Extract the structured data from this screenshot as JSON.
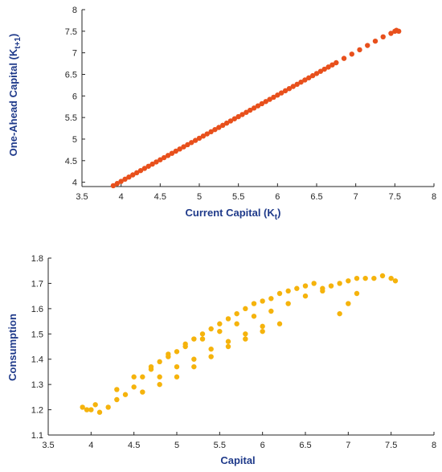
{
  "chart_data": [
    {
      "type": "scatter",
      "xlabel": "Current Capital (K",
      "xlabel_sub": "t",
      "xlabel_end": ")",
      "ylabel": "One-Ahead Capital (K",
      "ylabel_sub": "t+1",
      "ylabel_end": ")",
      "xlim": [
        3.5,
        8
      ],
      "ylim": [
        3.9,
        8
      ],
      "xticks": [
        "3.5",
        "4",
        "4.5",
        "5",
        "5.5",
        "6",
        "6.5",
        "7",
        "7.5",
        "8"
      ],
      "yticks": [
        "4",
        "4.5",
        "5",
        "5.5",
        "6",
        "6.5",
        "7",
        "7.5",
        "8"
      ],
      "grid": false,
      "color": "#e8501c",
      "x": [
        3.9,
        3.95,
        4.0,
        4.05,
        4.1,
        4.15,
        4.2,
        4.25,
        4.3,
        4.35,
        4.4,
        4.45,
        4.5,
        4.55,
        4.6,
        4.65,
        4.7,
        4.75,
        4.8,
        4.85,
        4.9,
        4.95,
        5.0,
        5.05,
        5.1,
        5.15,
        5.2,
        5.25,
        5.3,
        5.35,
        5.4,
        5.45,
        5.5,
        5.55,
        5.6,
        5.65,
        5.7,
        5.75,
        5.8,
        5.85,
        5.9,
        5.95,
        6.0,
        6.05,
        6.1,
        6.15,
        6.2,
        6.25,
        6.3,
        6.35,
        6.4,
        6.45,
        6.5,
        6.55,
        6.6,
        6.65,
        6.7,
        6.75,
        6.85,
        6.95,
        7.05,
        7.15,
        7.25,
        7.35,
        7.45,
        7.5,
        7.52,
        7.55
      ],
      "y": [
        3.92,
        3.97,
        4.02,
        4.07,
        4.12,
        4.17,
        4.22,
        4.27,
        4.32,
        4.37,
        4.42,
        4.47,
        4.52,
        4.57,
        4.62,
        4.67,
        4.72,
        4.77,
        4.82,
        4.87,
        4.92,
        4.97,
        5.02,
        5.07,
        5.12,
        5.17,
        5.22,
        5.27,
        5.32,
        5.37,
        5.42,
        5.47,
        5.52,
        5.57,
        5.62,
        5.67,
        5.72,
        5.77,
        5.82,
        5.87,
        5.92,
        5.97,
        6.02,
        6.07,
        6.12,
        6.17,
        6.22,
        6.27,
        6.32,
        6.37,
        6.42,
        6.47,
        6.52,
        6.57,
        6.62,
        6.67,
        6.72,
        6.77,
        6.87,
        6.97,
        7.07,
        7.17,
        7.27,
        7.37,
        7.45,
        7.5,
        7.52,
        7.5
      ]
    },
    {
      "type": "scatter",
      "xlabel": "Capital",
      "ylabel": "Consumption",
      "xlim": [
        3.5,
        8
      ],
      "ylim": [
        1.1,
        1.8
      ],
      "xticks": [
        "3.5",
        "4",
        "4.5",
        "5",
        "5.5",
        "6",
        "6.5",
        "7",
        "7.5",
        "8"
      ],
      "yticks": [
        "1.1",
        "1.2",
        "1.3",
        "1.4",
        "1.5",
        "1.6",
        "1.7",
        "1.8"
      ],
      "grid": false,
      "color": "#f5b30c",
      "x": [
        3.9,
        3.95,
        4.0,
        4.05,
        4.1,
        4.2,
        4.3,
        4.4,
        4.5,
        4.6,
        4.7,
        4.8,
        4.9,
        5.0,
        5.1,
        5.2,
        5.3,
        5.4,
        5.5,
        5.6,
        5.7,
        5.8,
        5.9,
        6.0,
        6.1,
        6.2,
        6.3,
        6.4,
        6.5,
        6.6,
        6.7,
        6.8,
        6.9,
        7.0,
        7.1,
        7.2,
        7.3,
        7.4,
        7.5,
        7.55,
        4.3,
        4.5,
        4.7,
        4.9,
        5.1,
        5.3,
        5.5,
        5.7,
        5.9,
        6.1,
        6.3,
        6.5,
        6.7,
        4.6,
        4.8,
        5.0,
        5.2,
        5.4,
        5.6,
        5.8,
        6.0,
        6.2,
        4.8,
        5.0,
        5.2,
        5.4,
        5.6,
        5.8,
        6.0,
        6.9,
        7.0,
        7.1
      ],
      "y": [
        1.21,
        1.2,
        1.2,
        1.22,
        1.19,
        1.21,
        1.24,
        1.26,
        1.29,
        1.33,
        1.36,
        1.39,
        1.42,
        1.43,
        1.46,
        1.48,
        1.5,
        1.52,
        1.54,
        1.56,
        1.58,
        1.6,
        1.62,
        1.63,
        1.64,
        1.66,
        1.67,
        1.68,
        1.69,
        1.7,
        1.68,
        1.69,
        1.7,
        1.71,
        1.72,
        1.72,
        1.72,
        1.73,
        1.72,
        1.71,
        1.28,
        1.33,
        1.37,
        1.41,
        1.45,
        1.48,
        1.51,
        1.54,
        1.57,
        1.59,
        1.62,
        1.65,
        1.67,
        1.27,
        1.3,
        1.33,
        1.37,
        1.41,
        1.45,
        1.48,
        1.51,
        1.54,
        1.33,
        1.37,
        1.4,
        1.44,
        1.47,
        1.5,
        1.53,
        1.58,
        1.62,
        1.66
      ]
    }
  ]
}
